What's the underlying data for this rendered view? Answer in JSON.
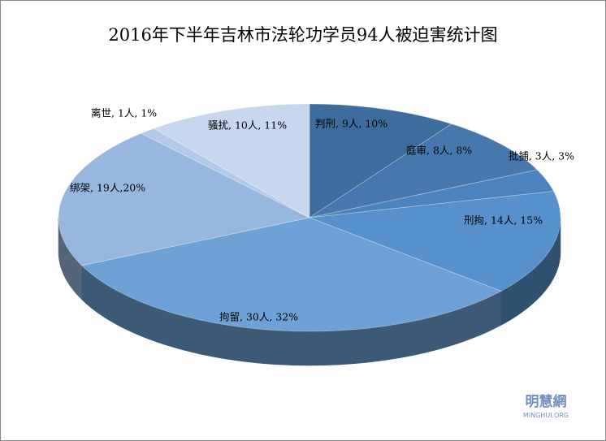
{
  "chart_data": {
    "type": "pie",
    "title": "2016年下半年吉林市法轮功学员94人被迫害统计图",
    "values": [
      9,
      8,
      3,
      14,
      30,
      19,
      1,
      10
    ],
    "value_labels": [
      "判刑, 9人, 10%",
      "庭审, 8人, 8%",
      "批捕, 3人, 3%",
      "刑拘, 14人, 15%",
      "拘留, 30人, 32%",
      "绑架, 19人,20%",
      "离世, 1人, 1%",
      "骚扰, 10人, 11%"
    ],
    "colors": [
      "#3e6c9c",
      "#4678ad",
      "#4b84bd",
      "#5791cb",
      "#6ea2d6",
      "#98b7de",
      "#b3c9e7",
      "#c7d7ee"
    ],
    "watermark": {
      "name": "明慧網",
      "site": "MINGHUI.ORG"
    }
  }
}
